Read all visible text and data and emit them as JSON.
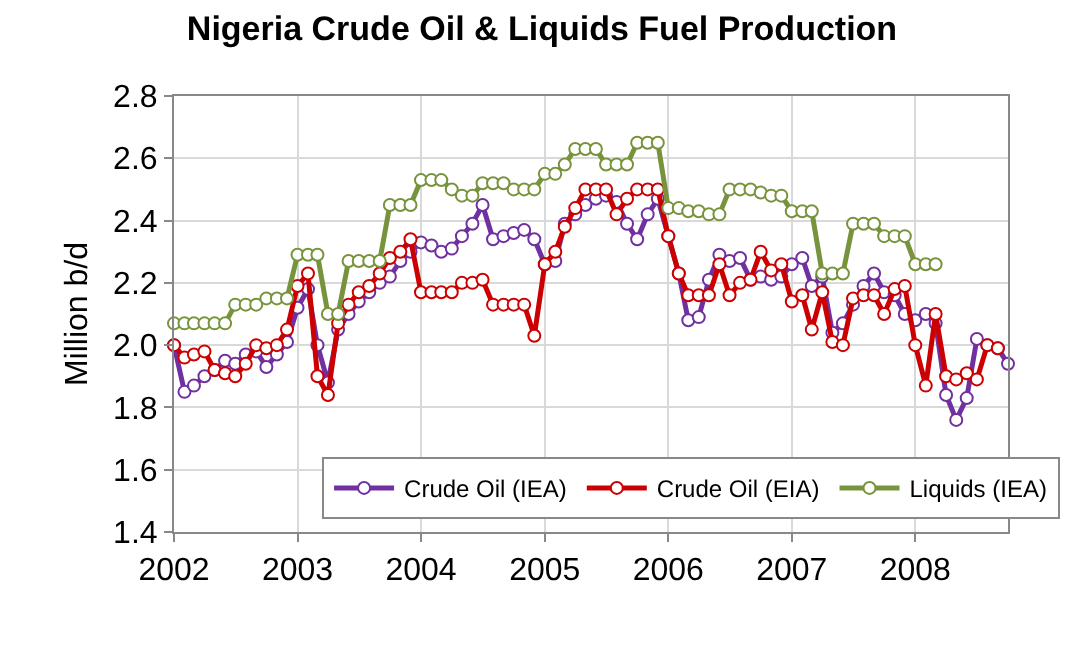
{
  "chart_data": {
    "type": "line",
    "title": "Nigeria Crude Oil & Liquids Fuel Production",
    "ylabel": "Million b/d",
    "x": [
      "2002-01",
      "2002-02",
      "2002-03",
      "2002-04",
      "2002-05",
      "2002-06",
      "2002-07",
      "2002-08",
      "2002-09",
      "2002-10",
      "2002-11",
      "2002-12",
      "2003-01",
      "2003-02",
      "2003-03",
      "2003-04",
      "2003-05",
      "2003-06",
      "2003-07",
      "2003-08",
      "2003-09",
      "2003-10",
      "2003-11",
      "2003-12",
      "2004-01",
      "2004-02",
      "2004-03",
      "2004-04",
      "2004-05",
      "2004-06",
      "2004-07",
      "2004-08",
      "2004-09",
      "2004-10",
      "2004-11",
      "2004-12",
      "2005-01",
      "2005-02",
      "2005-03",
      "2005-04",
      "2005-05",
      "2005-06",
      "2005-07",
      "2005-08",
      "2005-09",
      "2005-10",
      "2005-11",
      "2005-12",
      "2006-01",
      "2006-02",
      "2006-03",
      "2006-04",
      "2006-05",
      "2006-06",
      "2006-07",
      "2006-08",
      "2006-09",
      "2006-10",
      "2006-11",
      "2006-12",
      "2007-01",
      "2007-02",
      "2007-03",
      "2007-04",
      "2007-05",
      "2007-06",
      "2007-07",
      "2007-08",
      "2007-09",
      "2007-10",
      "2007-11",
      "2007-12",
      "2008-01",
      "2008-02",
      "2008-03",
      "2008-04",
      "2008-05",
      "2008-06",
      "2008-07",
      "2008-08",
      "2008-09",
      "2008-10"
    ],
    "series": [
      {
        "name": "Crude Oil (IEA)",
        "color": "#7030a0",
        "values": [
          2.0,
          1.85,
          1.87,
          1.9,
          1.92,
          1.95,
          1.94,
          1.97,
          1.98,
          1.93,
          1.97,
          2.01,
          2.12,
          2.18,
          2.0,
          1.88,
          2.05,
          2.1,
          2.14,
          2.17,
          2.2,
          2.22,
          2.27,
          2.3,
          2.33,
          2.32,
          2.3,
          2.31,
          2.35,
          2.39,
          2.45,
          2.34,
          2.35,
          2.36,
          2.37,
          2.34,
          2.26,
          2.27,
          2.39,
          2.42,
          2.45,
          2.47,
          2.48,
          2.46,
          2.39,
          2.34,
          2.42,
          2.47,
          2.35,
          2.23,
          2.08,
          2.09,
          2.21,
          2.29,
          2.27,
          2.28,
          2.21,
          2.22,
          2.21,
          2.22,
          2.26,
          2.28,
          2.19,
          2.22,
          2.04,
          2.07,
          2.13,
          2.19,
          2.23,
          2.17,
          2.16,
          2.1,
          2.08,
          2.1,
          2.07,
          1.84,
          1.76,
          1.83,
          2.02,
          2.0,
          1.99,
          1.94
        ]
      },
      {
        "name": "Crude Oil (EIA)",
        "color": "#cc0000",
        "values": [
          2.0,
          1.96,
          1.97,
          1.98,
          1.92,
          1.91,
          1.9,
          1.94,
          2.0,
          1.99,
          2.0,
          2.05,
          2.19,
          2.23,
          1.9,
          1.84,
          2.07,
          2.13,
          2.17,
          2.19,
          2.23,
          2.28,
          2.3,
          2.34,
          2.17,
          2.17,
          2.17,
          2.17,
          2.2,
          2.2,
          2.21,
          2.13,
          2.13,
          2.13,
          2.13,
          2.03,
          2.26,
          2.3,
          2.38,
          2.44,
          2.5,
          2.5,
          2.5,
          2.42,
          2.47,
          2.5,
          2.5,
          2.5,
          2.35,
          2.23,
          2.16,
          2.16,
          2.16,
          2.26,
          2.16,
          2.2,
          2.21,
          2.3,
          2.24,
          2.26,
          2.14,
          2.16,
          2.05,
          2.17,
          2.01,
          2.0,
          2.15,
          2.16,
          2.16,
          2.1,
          2.18,
          2.19,
          2.0,
          1.87,
          2.1,
          1.9,
          1.89,
          1.91,
          1.89,
          2.0,
          1.99,
          null
        ]
      },
      {
        "name": "Liquids (IEA)",
        "color": "#77933c",
        "values": [
          2.07,
          2.07,
          2.07,
          2.07,
          2.07,
          2.07,
          2.13,
          2.13,
          2.13,
          2.15,
          2.15,
          2.15,
          2.29,
          2.29,
          2.29,
          2.1,
          2.1,
          2.27,
          2.27,
          2.27,
          2.27,
          2.45,
          2.45,
          2.45,
          2.53,
          2.53,
          2.53,
          2.5,
          2.48,
          2.48,
          2.52,
          2.52,
          2.52,
          2.5,
          2.5,
          2.5,
          2.55,
          2.55,
          2.58,
          2.63,
          2.63,
          2.63,
          2.58,
          2.58,
          2.58,
          2.65,
          2.65,
          2.65,
          2.44,
          2.44,
          2.43,
          2.43,
          2.42,
          2.42,
          2.5,
          2.5,
          2.5,
          2.49,
          2.48,
          2.48,
          2.43,
          2.43,
          2.43,
          2.23,
          2.23,
          2.23,
          2.39,
          2.39,
          2.39,
          2.35,
          2.35,
          2.35,
          2.26,
          2.26,
          2.26,
          null,
          null,
          null,
          null,
          null,
          null,
          null
        ]
      }
    ],
    "xlim": [
      "2002-01-01",
      "2008-10-01"
    ],
    "xticks": [
      "2002",
      "2003",
      "2004",
      "2005",
      "2006",
      "2007",
      "2008"
    ],
    "ylim": [
      1.4,
      2.8
    ],
    "yticks": [
      1.4,
      1.6,
      1.8,
      {
        "value": 2,
        "label": "2.0"
      },
      2.2,
      2.4,
      2.6,
      2.8
    ],
    "grid": true,
    "legend": "bottom",
    "marker": "circle",
    "line_style": "solid"
  }
}
